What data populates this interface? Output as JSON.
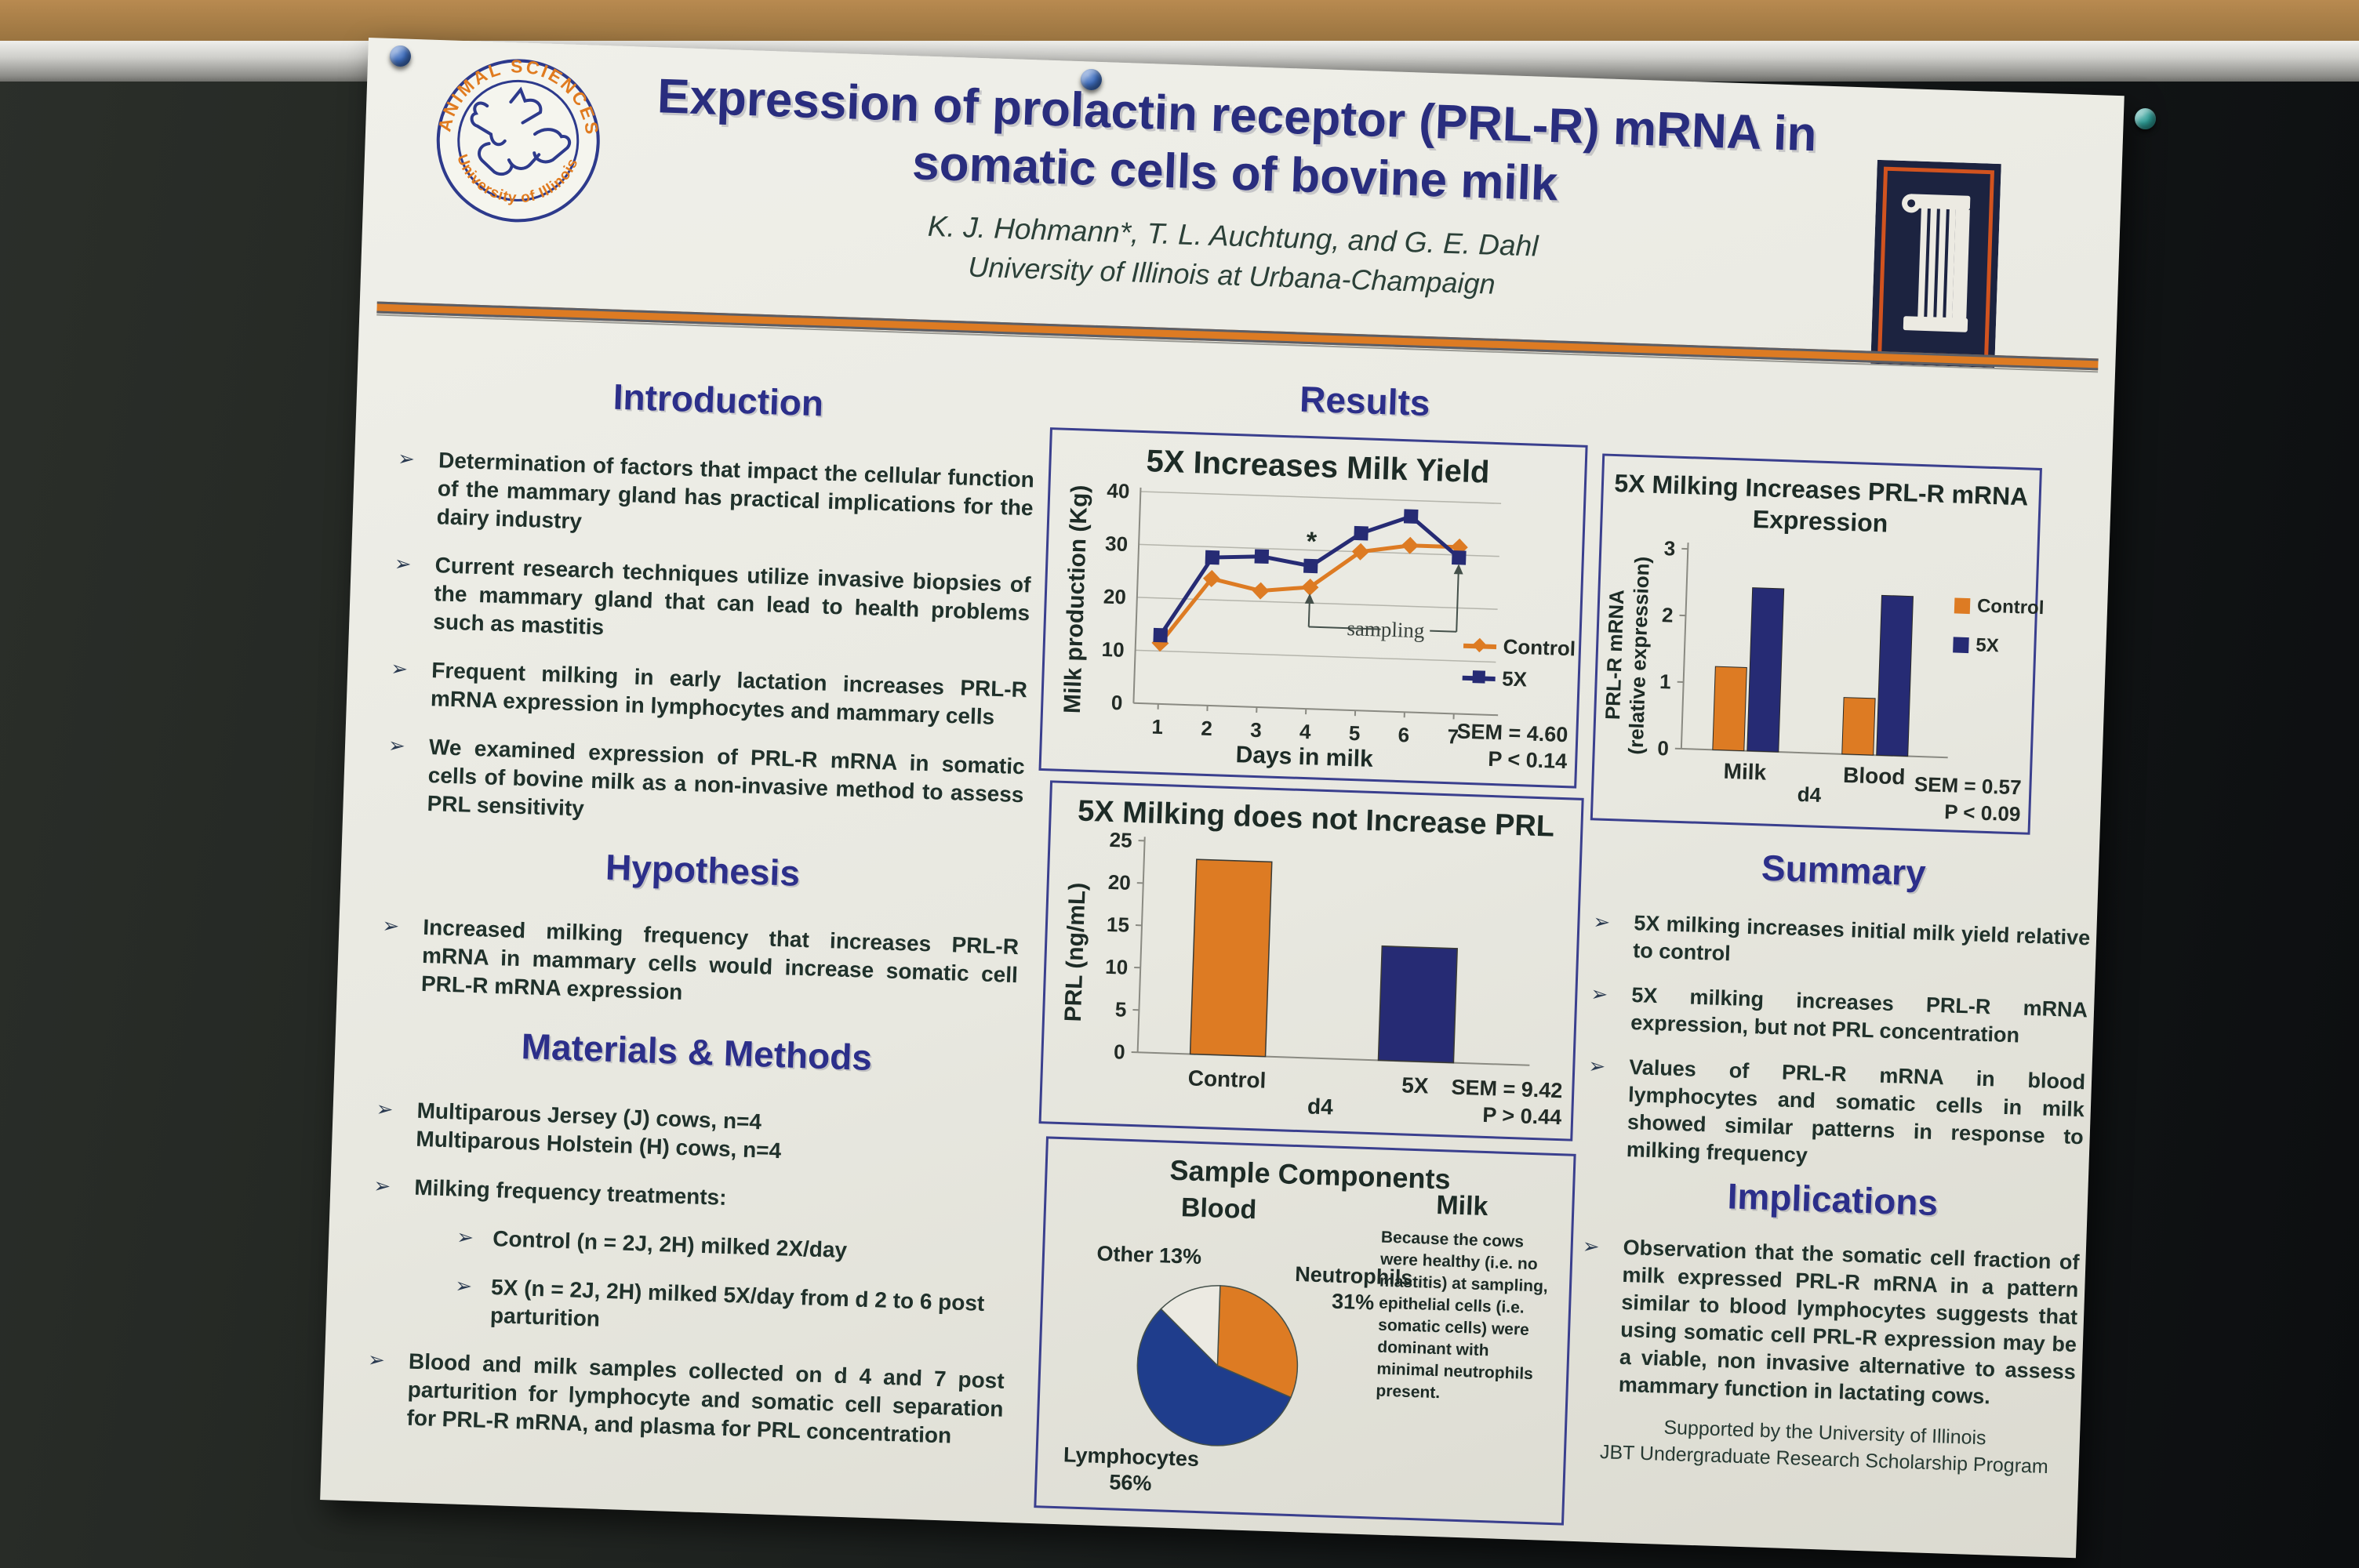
{
  "poster": {
    "title_line1": "Expression of prolactin receptor (PRL-R) mRNA in",
    "title_line2": "somatic cells of bovine milk",
    "authors": "K. J. Hohmann*, T. L. Auchtung, and G. E. Dahl",
    "affiliation": "University of Illinois at Urbana-Champaign",
    "results_heading": "Results",
    "icons": {
      "bullet_arrow": "➢"
    },
    "colors": {
      "accent_orange": "#dd7b23",
      "navy": "#262b74",
      "heading_navy": "#2c2f8a",
      "paper": "#e9e9e1"
    },
    "logo_left": {
      "top_text": "ANIMAL SCIENCES",
      "bottom_text": "University of Illinois"
    }
  },
  "sections": {
    "introduction": {
      "heading": "Introduction",
      "bullets": [
        "Determination of factors that impact the cellular function of the mammary gland has practical implications for the dairy industry",
        "Current research techniques utilize invasive biopsies of the mammary gland that can lead to health problems such as mastitis",
        "Frequent milking in early lactation increases PRL-R mRNA expression in lymphocytes and mammary cells",
        "We examined expression of PRL-R mRNA in somatic cells of bovine milk as a non-invasive method to assess PRL sensitivity"
      ]
    },
    "hypothesis": {
      "heading": "Hypothesis",
      "bullets": [
        "Increased milking frequency that increases PRL-R mRNA in mammary cells would increase somatic cell PRL-R mRNA expression"
      ]
    },
    "methods": {
      "heading": "Materials & Methods",
      "bullet1_line1": "Multiparous Jersey (J) cows, n=4",
      "bullet1_line2": "Multiparous Holstein (H) cows, n=4",
      "bullet2": "Milking frequency treatments:",
      "sub_bullets": [
        "Control (n = 2J, 2H) milked 2X/day",
        "5X (n = 2J, 2H) milked 5X/day from d 2 to 6 post parturition"
      ],
      "bullet3": "Blood and milk samples collected on d 4 and 7 post parturition for lymphocyte and somatic cell separation for PRL-R mRNA, and plasma for PRL concentration"
    },
    "summary": {
      "heading": "Summary",
      "bullets": [
        "5X milking increases initial milk yield relative to control",
        "5X milking increases PRL-R mRNA expression, but not PRL concentration",
        "Values of PRL-R mRNA in blood lymphocytes and somatic cells in milk showed similar patterns in response to milking frequency"
      ]
    },
    "implications": {
      "heading": "Implications",
      "bullets": [
        "Observation that the somatic cell fraction of milk expressed PRL-R mRNA in a pattern similar to blood lymphocytes suggests that using somatic cell PRL-R expression may be a viable, non invasive alternative to assess mammary function in lactating cows."
      ]
    }
  },
  "footer": {
    "line1": "Supported by the University of Illinois",
    "line2": "JBT Undergraduate Research Scholarship Program"
  },
  "chart_data": [
    {
      "type": "line",
      "title": "5X Increases Milk Yield",
      "xlabel": "Days in milk",
      "ylabel": "Milk production (Kg)",
      "x": [
        1,
        2,
        3,
        4,
        5,
        6,
        7
      ],
      "ylim": [
        0,
        40
      ],
      "yticks": [
        0,
        10,
        20,
        30,
        40
      ],
      "grid": true,
      "legend_position": "right",
      "series": [
        {
          "name": "Control",
          "marker": "diamond",
          "color": "#dd7b23",
          "values": [
            11.5,
            24,
            22,
            23,
            30,
            31.5,
            31.5
          ]
        },
        {
          "name": "5X",
          "marker": "square",
          "color": "#262b74",
          "values": [
            13,
            28,
            28.5,
            27,
            33.5,
            37,
            29.5
          ]
        }
      ],
      "annotations": {
        "label": "sampling",
        "asterisk": "*",
        "span_days": [
          4,
          7
        ],
        "bracket_y": 15.5
      },
      "stats": [
        "SEM = 4.60",
        "P < 0.14"
      ]
    },
    {
      "type": "bar",
      "title": "5X Milking does not Increase PRL",
      "ylabel": "PRL (ng/mL)",
      "xlabel": "d4",
      "categories": [
        "Control",
        "5X"
      ],
      "values": [
        23,
        13.5
      ],
      "colors": [
        "#dd7b23",
        "#262b74"
      ],
      "ylim": [
        0,
        25
      ],
      "yticks": [
        0,
        5,
        10,
        15,
        20,
        25
      ],
      "grid": false,
      "stats": [
        "SEM = 9.42",
        "P > 0.44"
      ]
    },
    {
      "type": "pie",
      "title": "Sample Components",
      "left_heading": "Blood",
      "right_heading": "Milk",
      "slices": [
        {
          "label": "Neutrophils",
          "pct": 31,
          "pct_label": "31%",
          "color": "#dd7b23"
        },
        {
          "label": "Lymphocytes",
          "pct": 56,
          "pct_label": "56%",
          "color": "#1f3d8c"
        },
        {
          "label": "Other",
          "pct": 13,
          "pct_label": "13%",
          "color": "#eceae2"
        }
      ],
      "other_label": "Other 13%",
      "milk_text": "Because the cows were healthy (i.e. no mastitis) at sampling, epithelial cells (i.e. somatic cells) were dominant with minimal neutrophils present."
    },
    {
      "type": "bar",
      "title_line1": "5X Milking Increases PRL-R mRNA",
      "title_line2": "Expression",
      "ylabel_lines": [
        "PRL-R mRNA",
        "(relative expression)"
      ],
      "xlabel": "d4",
      "categories": [
        "Milk",
        "Blood"
      ],
      "series": [
        {
          "name": "Control",
          "color": "#dd7b23",
          "values": [
            1.25,
            0.85
          ]
        },
        {
          "name": "5X",
          "color": "#262b74",
          "values": [
            2.45,
            2.4
          ]
        }
      ],
      "ylim": [
        0,
        3
      ],
      "yticks": [
        0,
        1,
        2,
        3
      ],
      "grid": false,
      "legend_position": "right",
      "stats": [
        "SEM = 0.57",
        "P < 0.09"
      ]
    }
  ],
  "scene": {
    "pin_colors": [
      "#3f6fc0",
      "#3f6fc0",
      "#2e9d96"
    ]
  }
}
